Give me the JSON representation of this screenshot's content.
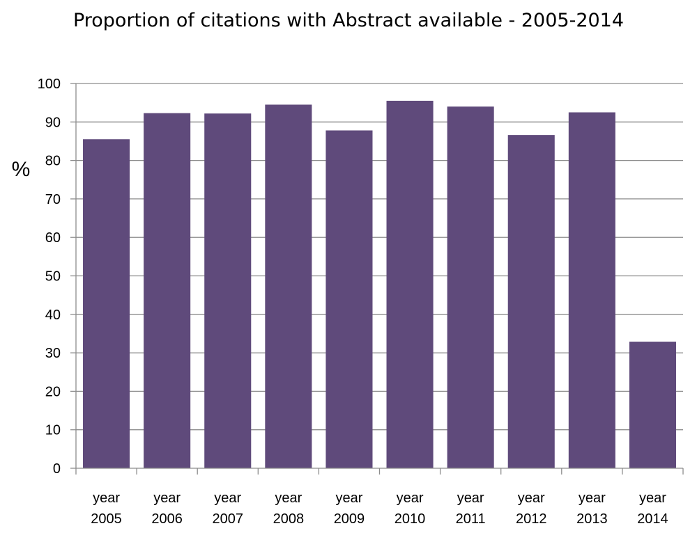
{
  "chart_data": {
    "type": "bar",
    "title": "Proportion of citations with Abstract available - 2005-2014",
    "ylabel": "%",
    "xlabel": "",
    "categories": [
      [
        "year",
        "2005"
      ],
      [
        "year",
        "2006"
      ],
      [
        "year",
        "2007"
      ],
      [
        "year",
        "2008"
      ],
      [
        "year",
        "2009"
      ],
      [
        "year",
        "2010"
      ],
      [
        "year",
        "2011"
      ],
      [
        "year",
        "2012"
      ],
      [
        "year",
        "2013"
      ],
      [
        "year",
        "2014"
      ]
    ],
    "values": [
      85.5,
      92.3,
      92.2,
      94.5,
      87.8,
      95.5,
      94.0,
      86.6,
      92.5,
      32.9
    ],
    "ylim": [
      0,
      100
    ],
    "yticks": [
      "0",
      "10",
      "20",
      "30",
      "40",
      "50",
      "60",
      "70",
      "80",
      "90",
      "100"
    ],
    "grid": true,
    "legend": "none",
    "bar_color": "#5f4a7b",
    "grid_color": "#8c8c8c"
  }
}
